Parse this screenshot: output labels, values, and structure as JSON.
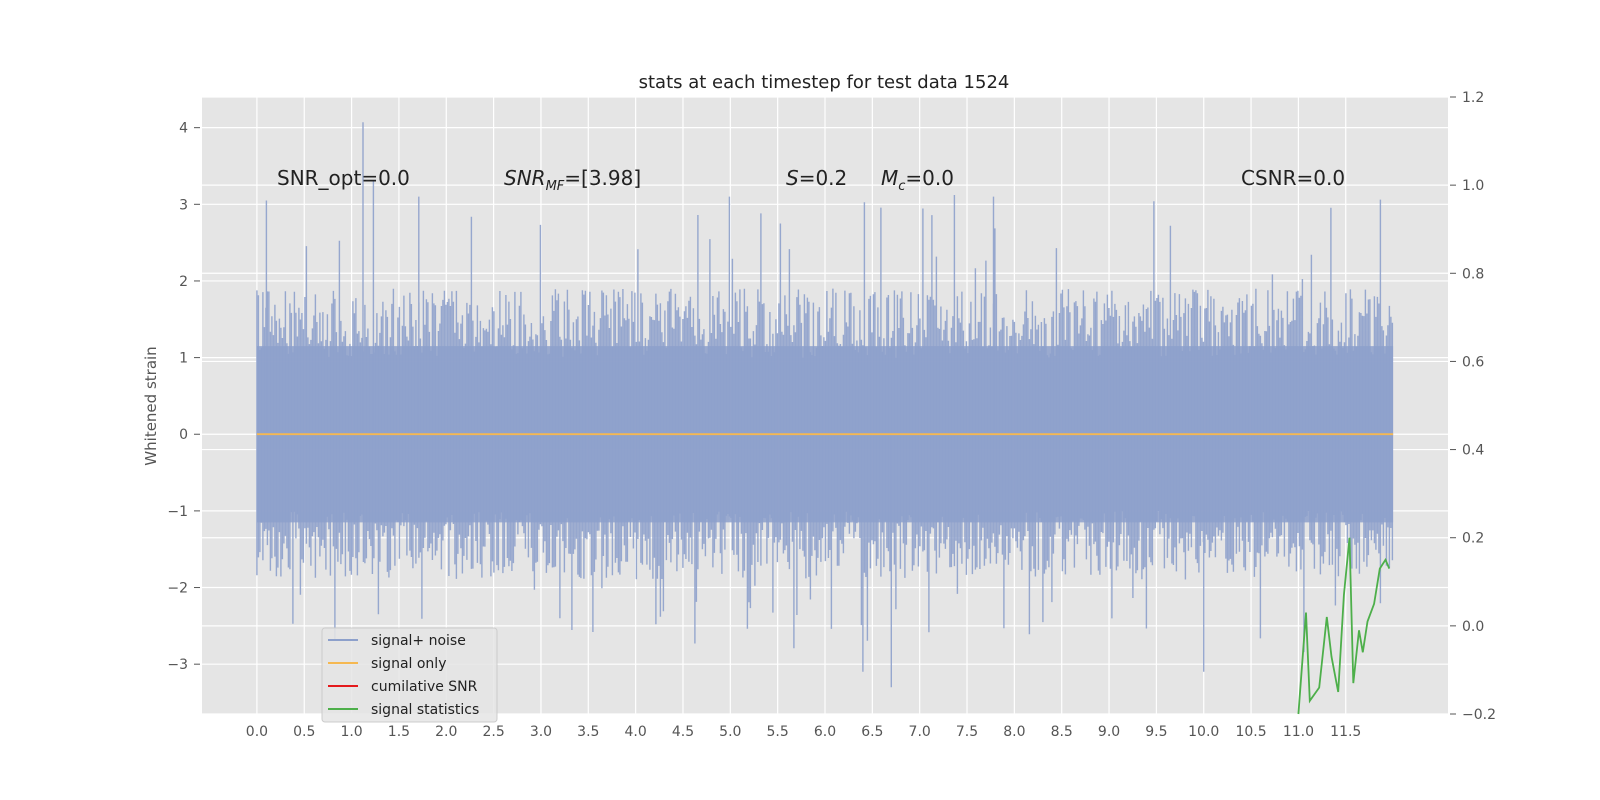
{
  "chart_data": {
    "type": "line",
    "title": "stats at each timestep for test data 1524",
    "xlabel": "",
    "ylabel": "Whitened strain",
    "ylabel_right": "",
    "xlim": [
      -0.58,
      12.58
    ],
    "ylim": [
      -3.65,
      4.4
    ],
    "ylim_right": [
      -0.2,
      1.2
    ],
    "grid": true,
    "x_ticks": [
      "0.0",
      "0.5",
      "1.0",
      "1.5",
      "2.0",
      "2.5",
      "3.0",
      "3.5",
      "4.0",
      "4.5",
      "5.0",
      "5.5",
      "6.0",
      "6.5",
      "7.0",
      "7.5",
      "8.0",
      "8.5",
      "9.0",
      "9.5",
      "10.0",
      "10.5",
      "11.0",
      "11.5"
    ],
    "y_ticks_left": [
      "4",
      "3",
      "2",
      "1",
      "0",
      "−1",
      "−2",
      "−3"
    ],
    "y_ticks_right": [
      "1.2",
      "1.0",
      "0.8",
      "0.6",
      "0.4",
      "0.2",
      "0.0",
      "−0.2"
    ],
    "annotations": {
      "snr_opt": "SNR_opt=0.0",
      "snr_mf_main": "SNR",
      "snr_mf_sub": "MF",
      "snr_mf_value": "=[3.98]",
      "s_symbol": "S",
      "s_value": "=0.2",
      "mc_main": "M",
      "mc_sub": "c",
      "mc_value": "=0.0",
      "csnr": "CSNR=0.0"
    },
    "legend": {
      "location": "lower-left",
      "entries": [
        "signal+ noise",
        "signal only",
        "cumilative SNR",
        "signal statistics"
      ]
    },
    "series": [
      {
        "name": "signal+ noise",
        "color": "#8da0cb",
        "axis": "left",
        "x_range": [
          0.0,
          12.0
        ],
        "noise_envelope": {
          "upper_peak": 4.07,
          "lower_peak": -3.3,
          "typical_upper": 1.7,
          "typical_lower": -1.7
        }
      },
      {
        "name": "signal only",
        "color": "#f5b851",
        "axis": "left",
        "x": [
          0.0,
          12.0
        ],
        "y": [
          0.0,
          0.0
        ]
      },
      {
        "name": "cumilative SNR",
        "color": "#e41a1c",
        "axis": "right",
        "x": [],
        "y": []
      },
      {
        "name": "signal statistics",
        "color": "#4daf4a",
        "axis": "right",
        "x": [
          11.0,
          11.08,
          11.12,
          11.22,
          11.3,
          11.35,
          11.42,
          11.48,
          11.54,
          11.58,
          11.64,
          11.68,
          11.73,
          11.8,
          11.86,
          11.92,
          11.96
        ],
        "y": [
          -0.2,
          0.03,
          -0.17,
          -0.14,
          0.02,
          -0.07,
          -0.15,
          0.07,
          0.2,
          -0.13,
          -0.01,
          -0.06,
          0.01,
          0.05,
          0.13,
          0.15,
          0.13
        ]
      }
    ]
  }
}
